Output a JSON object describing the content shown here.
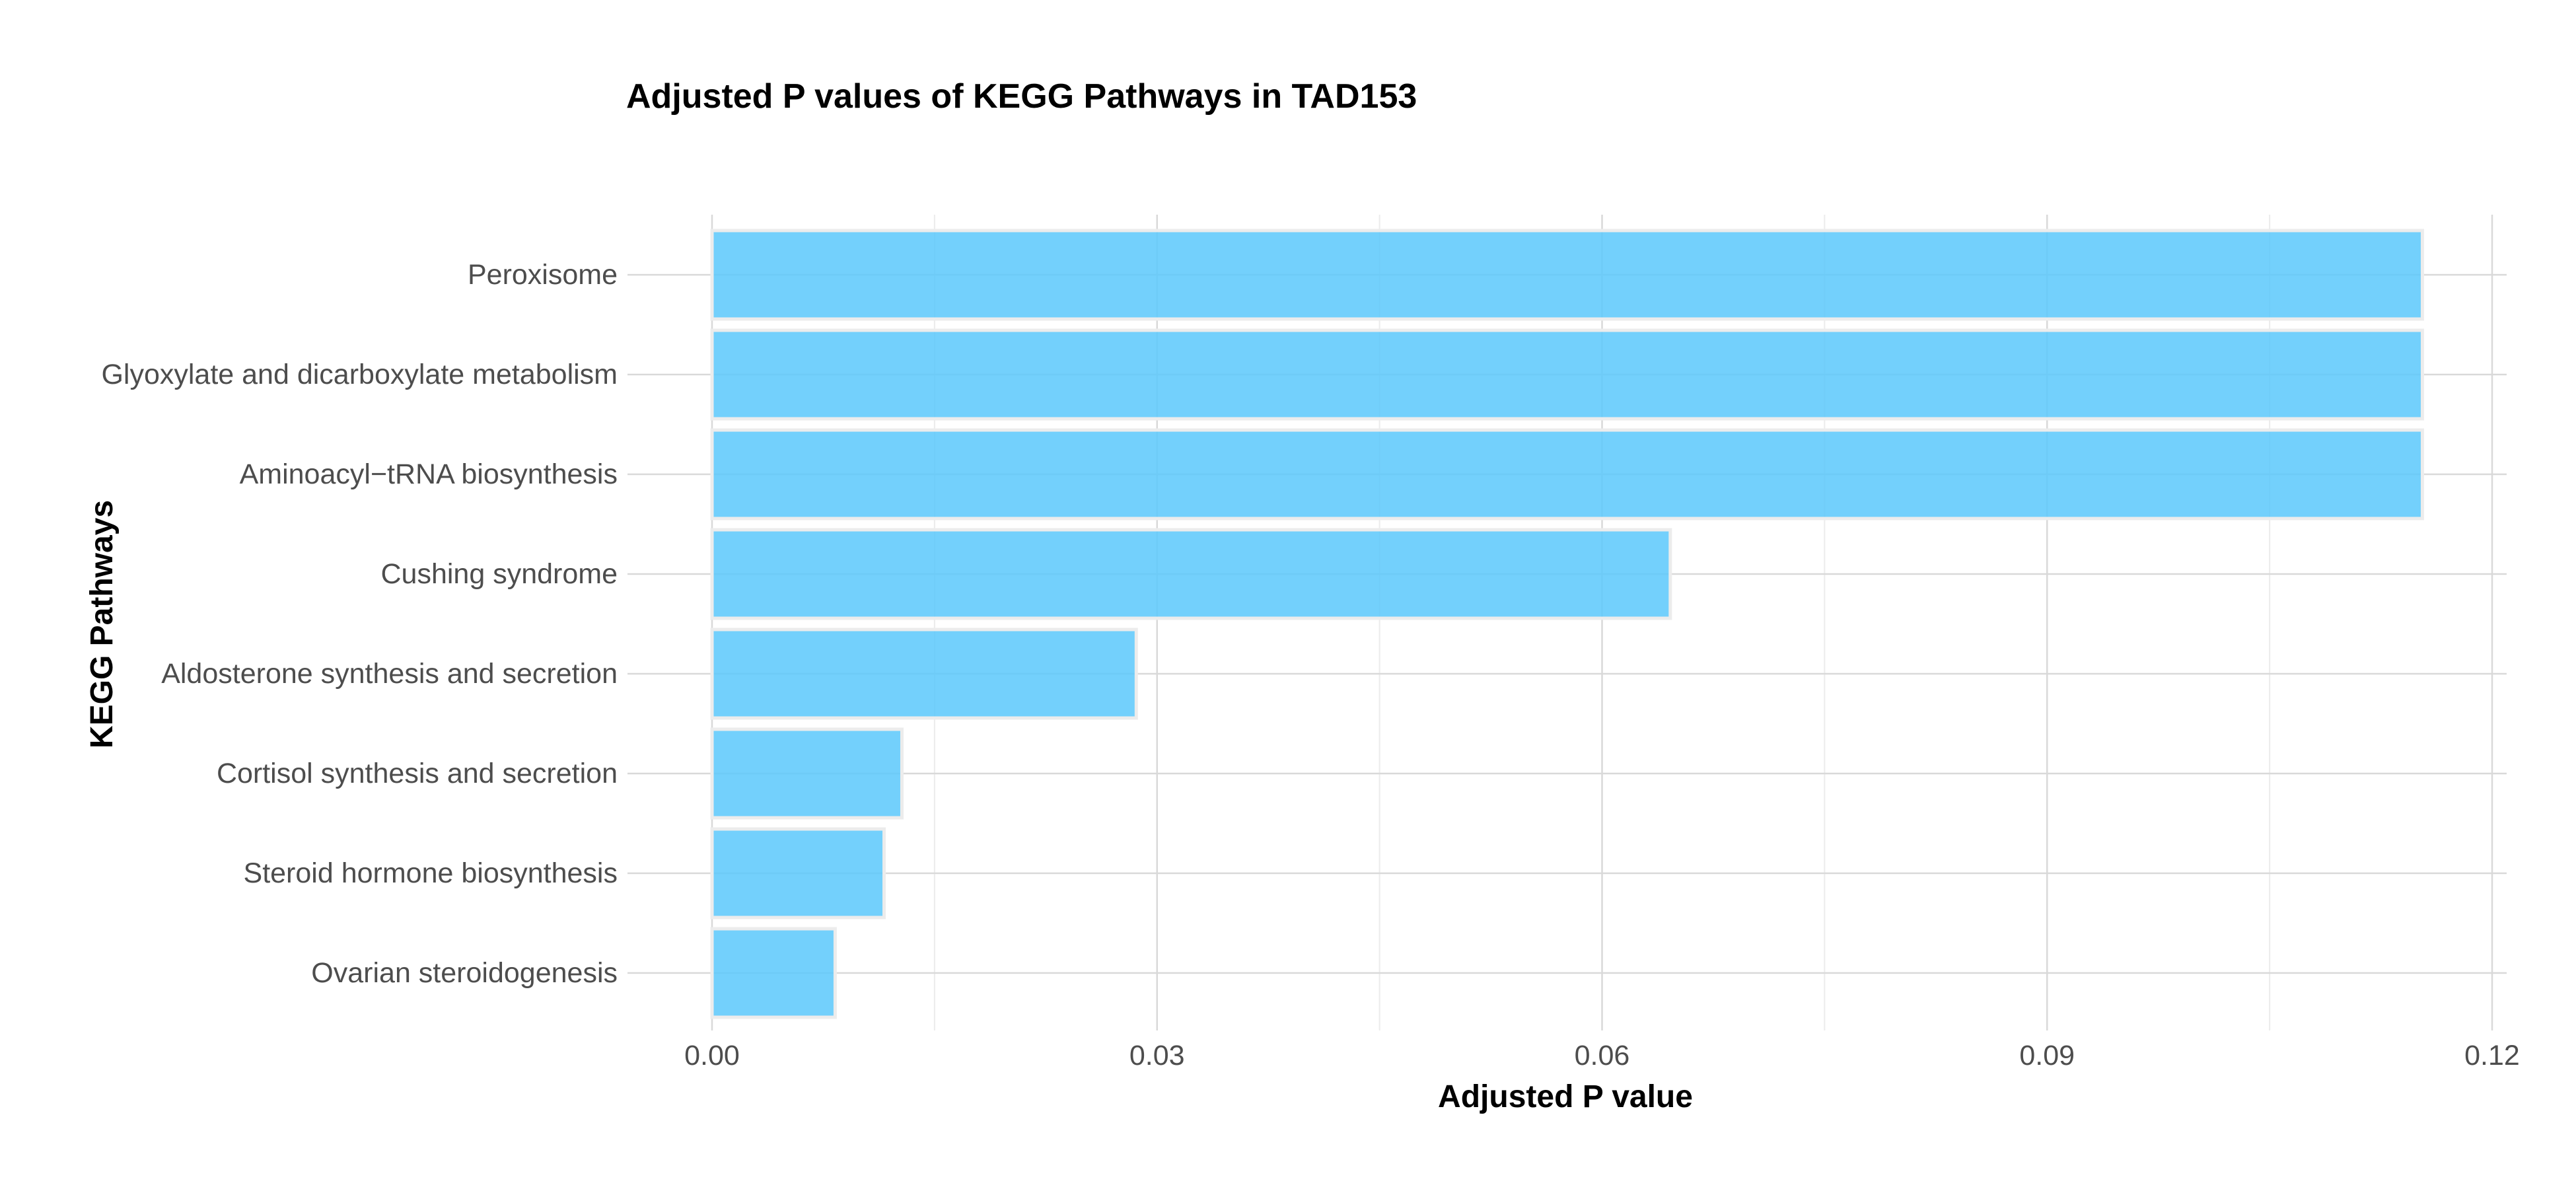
{
  "chart_data": {
    "type": "bar",
    "orientation": "horizontal",
    "title": "Adjusted P values of KEGG Pathways in TAD153",
    "xlabel": "Adjusted P value",
    "ylabel": "KEGG Pathways",
    "categories": [
      "Peroxisome",
      "Glyoxylate and dicarboxylate metabolism",
      "Aminoacyl−tRNA biosynthesis",
      "Cushing syndrome",
      "Aldosterone synthesis and secretion",
      "Cortisol synthesis and secretion",
      "Steroid hormone biosynthesis",
      "Ovarian steroidogenesis"
    ],
    "values": [
      0.1153,
      0.1153,
      0.1153,
      0.0646,
      0.0286,
      0.0128,
      0.0116,
      0.0083
    ],
    "xlim": [
      0,
      0.12
    ],
    "x_ticks": [
      0.0,
      0.03,
      0.06,
      0.09,
      0.12
    ],
    "x_tick_labels": [
      "0.00",
      "0.03",
      "0.06",
      "0.09",
      "0.12"
    ],
    "grid": true,
    "legend": "none",
    "bar_color": "#5BC8FB",
    "background": "#ffffff"
  }
}
